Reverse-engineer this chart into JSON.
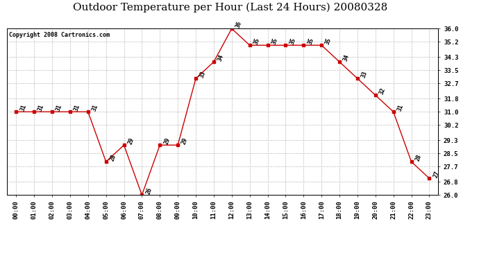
{
  "title": "Outdoor Temperature per Hour (Last 24 Hours) 20080328",
  "copyright": "Copyright 2008 Cartronics.com",
  "hours": [
    "00:00",
    "01:00",
    "02:00",
    "03:00",
    "04:00",
    "05:00",
    "06:00",
    "07:00",
    "08:00",
    "09:00",
    "10:00",
    "11:00",
    "12:00",
    "13:00",
    "14:00",
    "15:00",
    "16:00",
    "17:00",
    "18:00",
    "19:00",
    "20:00",
    "21:00",
    "22:00",
    "23:00"
  ],
  "temperatures": [
    31,
    31,
    31,
    31,
    31,
    28,
    29,
    26,
    29,
    29,
    33,
    34,
    36,
    35,
    35,
    35,
    35,
    35,
    34,
    33,
    32,
    31,
    28,
    27
  ],
  "ylim_min": 26.0,
  "ylim_max": 36.0,
  "yticks": [
    26.0,
    26.8,
    27.7,
    28.5,
    29.3,
    30.2,
    31.0,
    31.8,
    32.7,
    33.5,
    34.3,
    35.2,
    36.0
  ],
  "line_color": "#cc0000",
  "marker_color": "#cc0000",
  "bg_color": "#ffffff",
  "grid_color": "#bbbbbb",
  "title_fontsize": 11,
  "copyright_fontsize": 6,
  "label_fontsize": 6,
  "tick_fontsize": 6.5
}
